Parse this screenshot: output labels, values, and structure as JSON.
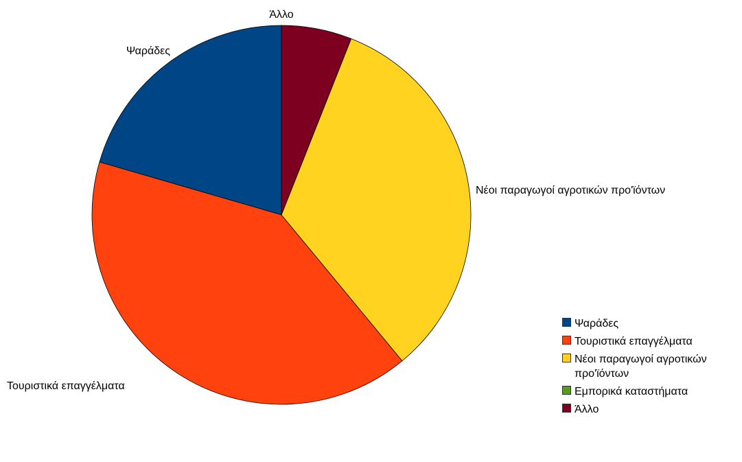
{
  "chart_data": {
    "type": "pie",
    "categories": [
      "Ψαράδες",
      "Τουριστικά επαγγέλματα",
      "Νέοι παραγωγοί αγροτικών προ'ϊόντων",
      "Εμπορικά καταστήματα",
      "Άλλο"
    ],
    "values": [
      20.5,
      40.5,
      33.0,
      0.0,
      6.0
    ],
    "legend_labels": [
      "Ψαράδες",
      "Τουριστικά επαγγέλματα",
      "Νέοι παραγωγοί αγροτικών προ'ϊόντων",
      "Εμπορικά καταστήματα",
      "Άλλο"
    ],
    "colors": [
      "#004586",
      "#ff420e",
      "#ffd320",
      "#579d1c",
      "#7e0021"
    ],
    "start": "top",
    "direction": "counterclockwise",
    "legend_position": "bottom-right"
  }
}
